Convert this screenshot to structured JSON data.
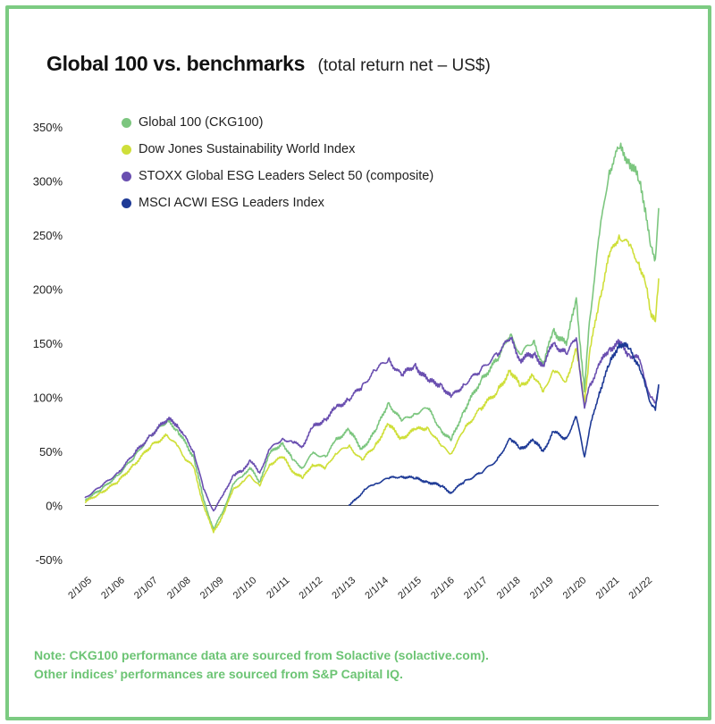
{
  "title": "Global 100 vs. benchmarks",
  "subtitle": "(total return net – US$)",
  "notes": [
    "Note: CKG100 performance data are sourced from Solactive (solactive.com).",
    "Other indices’ performances are sourced from S&P Capital IQ."
  ],
  "chart_data": {
    "type": "line",
    "title": "Global 100 vs. benchmarks",
    "subtitle": "(total return net – US$)",
    "xlabel": "",
    "ylabel": "",
    "x_unit": "year",
    "xlim": [
      2005,
      2022.4
    ],
    "ylim": [
      -50,
      350
    ],
    "y_ticks": [
      -50,
      0,
      50,
      100,
      150,
      200,
      250,
      300,
      350
    ],
    "y_tick_labels": [
      "-50%",
      "0%",
      "50%",
      "100%",
      "150%",
      "200%",
      "250%",
      "300%",
      "350%"
    ],
    "x_ticks": [
      2005,
      2006,
      2007,
      2008,
      2009,
      2010,
      2011,
      2012,
      2013,
      2014,
      2015,
      2016,
      2017,
      2018,
      2019,
      2020,
      2021,
      2022
    ],
    "x_tick_labels": [
      "2/1/05",
      "2/1/06",
      "2/1/07",
      "2/1/08",
      "2/1/09",
      "2/1/10",
      "2/1/11",
      "2/1/12",
      "2/1/13",
      "2/1/14",
      "2/1/15",
      "2/1/16",
      "2/1/17",
      "2/1/18",
      "2/1/19",
      "2/1/20",
      "2/1/21",
      "2/1/22"
    ],
    "grid": false,
    "zero_line": true,
    "legend_position": "top-left",
    "series": [
      {
        "name": "Global 100 (CKG100)",
        "color": "#7cc67f",
        "x": [
          2005.0,
          2005.5,
          2006.0,
          2006.5,
          2007.0,
          2007.5,
          2007.8,
          2008.0,
          2008.3,
          2008.6,
          2008.9,
          2009.2,
          2009.5,
          2009.8,
          2010.0,
          2010.3,
          2010.6,
          2011.0,
          2011.3,
          2011.6,
          2011.9,
          2012.3,
          2012.6,
          2013.0,
          2013.4,
          2013.8,
          2014.2,
          2014.6,
          2015.0,
          2015.4,
          2015.8,
          2016.1,
          2016.5,
          2017.0,
          2017.5,
          2017.9,
          2018.2,
          2018.6,
          2018.9,
          2019.2,
          2019.6,
          2019.9,
          2020.15,
          2020.3,
          2020.6,
          2020.9,
          2021.2,
          2021.5,
          2021.8,
          2022.0,
          2022.15,
          2022.3,
          2022.4
        ],
        "y": [
          5,
          15,
          28,
          45,
          65,
          78,
          70,
          60,
          45,
          5,
          -22,
          -5,
          20,
          28,
          35,
          22,
          48,
          58,
          42,
          35,
          48,
          45,
          60,
          70,
          52,
          68,
          95,
          78,
          85,
          90,
          70,
          60,
          88,
          115,
          135,
          158,
          140,
          152,
          130,
          162,
          148,
          192,
          105,
          170,
          250,
          310,
          330,
          320,
          300,
          275,
          240,
          228,
          275
        ]
      },
      {
        "name": "Dow Jones Sustainability World Index",
        "color": "#cfdf3a",
        "x": [
          2005.0,
          2005.5,
          2006.0,
          2006.5,
          2007.0,
          2007.5,
          2007.8,
          2008.0,
          2008.3,
          2008.6,
          2008.9,
          2009.2,
          2009.5,
          2009.8,
          2010.0,
          2010.3,
          2010.6,
          2011.0,
          2011.3,
          2011.6,
          2011.9,
          2012.3,
          2012.6,
          2013.0,
          2013.4,
          2013.8,
          2014.2,
          2014.6,
          2015.0,
          2015.4,
          2015.8,
          2016.1,
          2016.5,
          2017.0,
          2017.5,
          2017.9,
          2018.2,
          2018.6,
          2018.9,
          2019.2,
          2019.6,
          2019.9,
          2020.15,
          2020.3,
          2020.6,
          2020.9,
          2021.2,
          2021.5,
          2021.8,
          2022.0,
          2022.15,
          2022.3,
          2022.4
        ],
        "y": [
          3,
          12,
          22,
          38,
          55,
          65,
          55,
          45,
          35,
          0,
          -25,
          -8,
          15,
          22,
          28,
          18,
          38,
          45,
          32,
          25,
          38,
          35,
          48,
          55,
          42,
          55,
          75,
          62,
          70,
          72,
          55,
          48,
          70,
          90,
          105,
          125,
          110,
          120,
          105,
          125,
          115,
          145,
          95,
          140,
          190,
          230,
          250,
          240,
          225,
          205,
          180,
          170,
          210
        ]
      },
      {
        "name": "STOXX Global ESG Leaders Select 50 (composite)",
        "color": "#6a4fb0",
        "x": [
          2005.0,
          2005.5,
          2006.0,
          2006.5,
          2007.0,
          2007.5,
          2007.8,
          2008.0,
          2008.3,
          2008.6,
          2008.9,
          2009.2,
          2009.5,
          2009.8,
          2010.0,
          2010.3,
          2010.6,
          2011.0,
          2011.3,
          2011.6,
          2011.9,
          2012.3,
          2012.6,
          2013.0,
          2013.4,
          2013.8,
          2014.2,
          2014.6,
          2015.0,
          2015.4,
          2015.8,
          2016.1,
          2016.5,
          2017.0,
          2017.5,
          2017.9,
          2018.2,
          2018.6,
          2018.9,
          2019.2,
          2019.6,
          2019.9,
          2020.15,
          2020.3,
          2020.6,
          2020.9,
          2021.2,
          2021.5,
          2021.8,
          2022.0,
          2022.15,
          2022.3,
          2022.4
        ],
        "y": [
          7,
          18,
          30,
          48,
          65,
          80,
          75,
          65,
          50,
          15,
          -5,
          10,
          28,
          32,
          42,
          30,
          52,
          62,
          58,
          55,
          72,
          80,
          90,
          98,
          110,
          125,
          135,
          120,
          130,
          115,
          112,
          100,
          112,
          125,
          140,
          155,
          135,
          140,
          130,
          150,
          140,
          155,
          90,
          110,
          130,
          145,
          150,
          140,
          135,
          115,
          100,
          95,
          110
        ]
      },
      {
        "name": "MSCI ACWI ESG Leaders Index",
        "color": "#1e3a96",
        "x": [
          2013.0,
          2013.2,
          2013.5,
          2013.8,
          2014.2,
          2014.6,
          2015.0,
          2015.4,
          2015.8,
          2016.1,
          2016.5,
          2017.0,
          2017.5,
          2017.9,
          2018.2,
          2018.6,
          2018.9,
          2019.2,
          2019.6,
          2019.9,
          2020.15,
          2020.3,
          2020.6,
          2020.9,
          2021.2,
          2021.5,
          2021.8,
          2022.0,
          2022.15,
          2022.3,
          2022.4
        ],
        "y": [
          0,
          5,
          15,
          20,
          25,
          27,
          25,
          22,
          18,
          12,
          22,
          30,
          42,
          62,
          52,
          60,
          50,
          68,
          62,
          82,
          45,
          70,
          105,
          130,
          150,
          145,
          130,
          110,
          95,
          88,
          112
        ]
      }
    ]
  }
}
